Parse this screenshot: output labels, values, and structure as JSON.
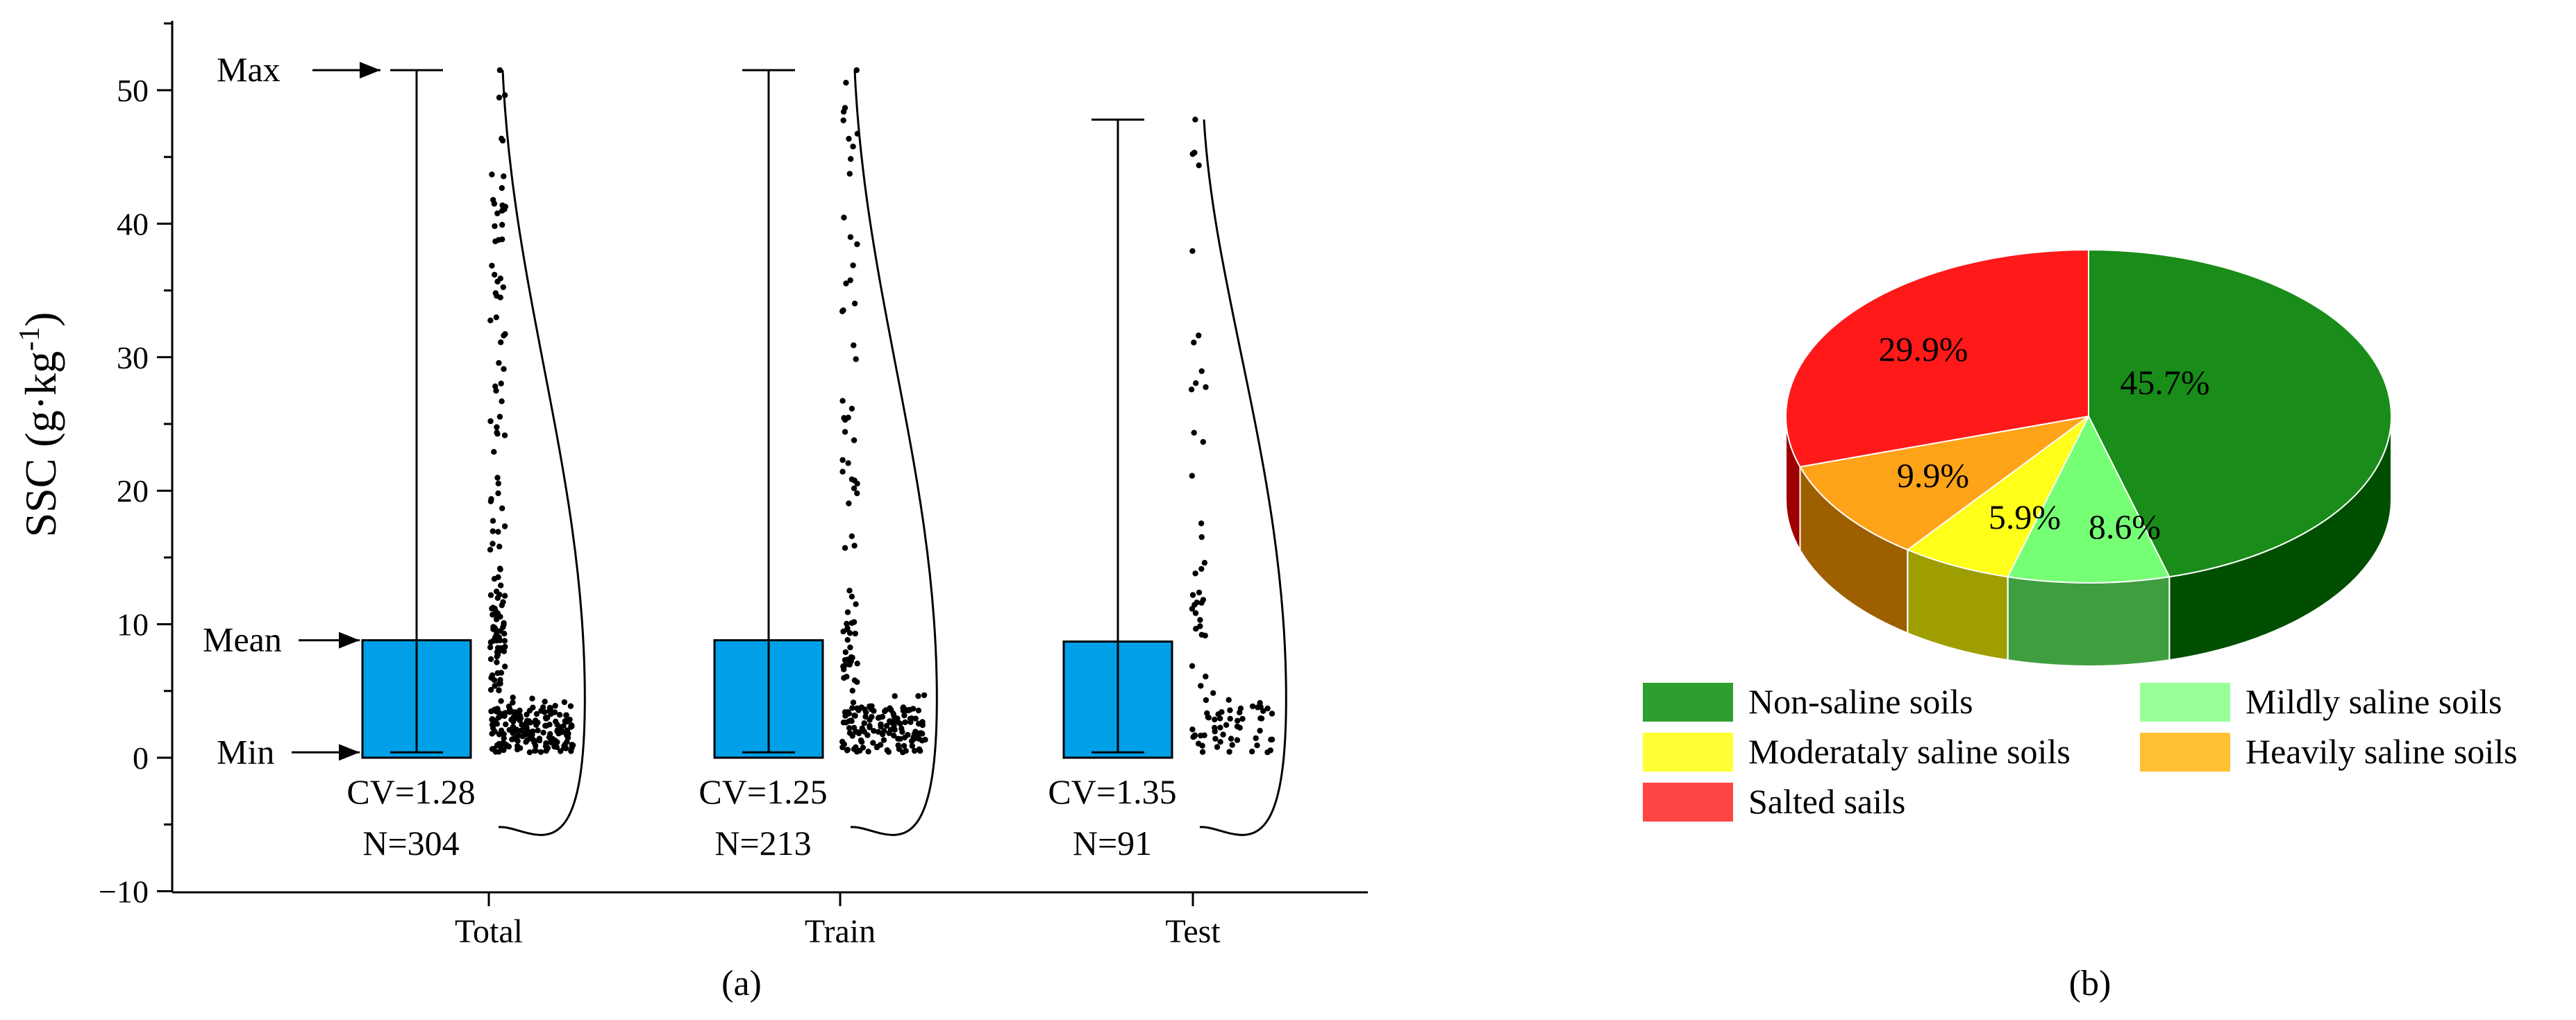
{
  "chart_data": [
    {
      "type": "box",
      "panel_label": "(a)",
      "ylabel_main": "SSC (g·kg",
      "ylabel_sup": "-1",
      "ylabel_end": ")",
      "ylim": [
        -10,
        55
      ],
      "yticks": [
        -10,
        0,
        10,
        20,
        30,
        40,
        50
      ],
      "ytick_labels": [
        "−10",
        "0",
        "10",
        "20",
        "30",
        "40",
        "50"
      ],
      "categories": [
        "Total",
        "Train",
        "Test"
      ],
      "color": "#00A0E9",
      "annotations": {
        "max": "Max",
        "mean": "Mean",
        "min": "Min"
      },
      "groups": [
        {
          "name": "Total",
          "mean": 8.8,
          "min": 0.4,
          "max": 51.5,
          "cv_label": "CV=1.28",
          "n_label": "N=304",
          "n": 304
        },
        {
          "name": "Train",
          "mean": 8.8,
          "min": 0.4,
          "max": 51.5,
          "cv_label": "CV=1.25",
          "n_label": "N=213",
          "n": 213
        },
        {
          "name": "Test",
          "mean": 8.7,
          "min": 0.4,
          "max": 47.8,
          "cv_label": "CV=1.35",
          "n_label": "N=91",
          "n": 91
        }
      ]
    },
    {
      "type": "pie",
      "panel_label": "(b)",
      "slices": [
        {
          "label": "Non-saline soils",
          "value": 45.7,
          "value_label": "45.7%",
          "color": "#008000"
        },
        {
          "label": "Mildly saline soils",
          "value": 8.6,
          "value_label": "8.6%",
          "color": "#66FF66"
        },
        {
          "label": "Moderataly saline soils",
          "value": 5.9,
          "value_label": "5.9%",
          "color": "#FFFF00"
        },
        {
          "label": "Heavily saline soils",
          "value": 9.9,
          "value_label": "9.9%",
          "color": "#FF9900"
        },
        {
          "label": "Salted sails",
          "value": 29.9,
          "value_label": "29.9%",
          "color": "#FF0000"
        }
      ],
      "legend": [
        {
          "label": "Non-saline soils",
          "color": "#2E9E2E"
        },
        {
          "label": "Mildly saline soils",
          "color": "#99FF99"
        },
        {
          "label": "Moderataly saline soils",
          "color": "#FFFF33"
        },
        {
          "label": "Heavily saline soils",
          "color": "#FFC133"
        },
        {
          "label": "Salted sails",
          "color": "#FF4444"
        }
      ]
    }
  ]
}
